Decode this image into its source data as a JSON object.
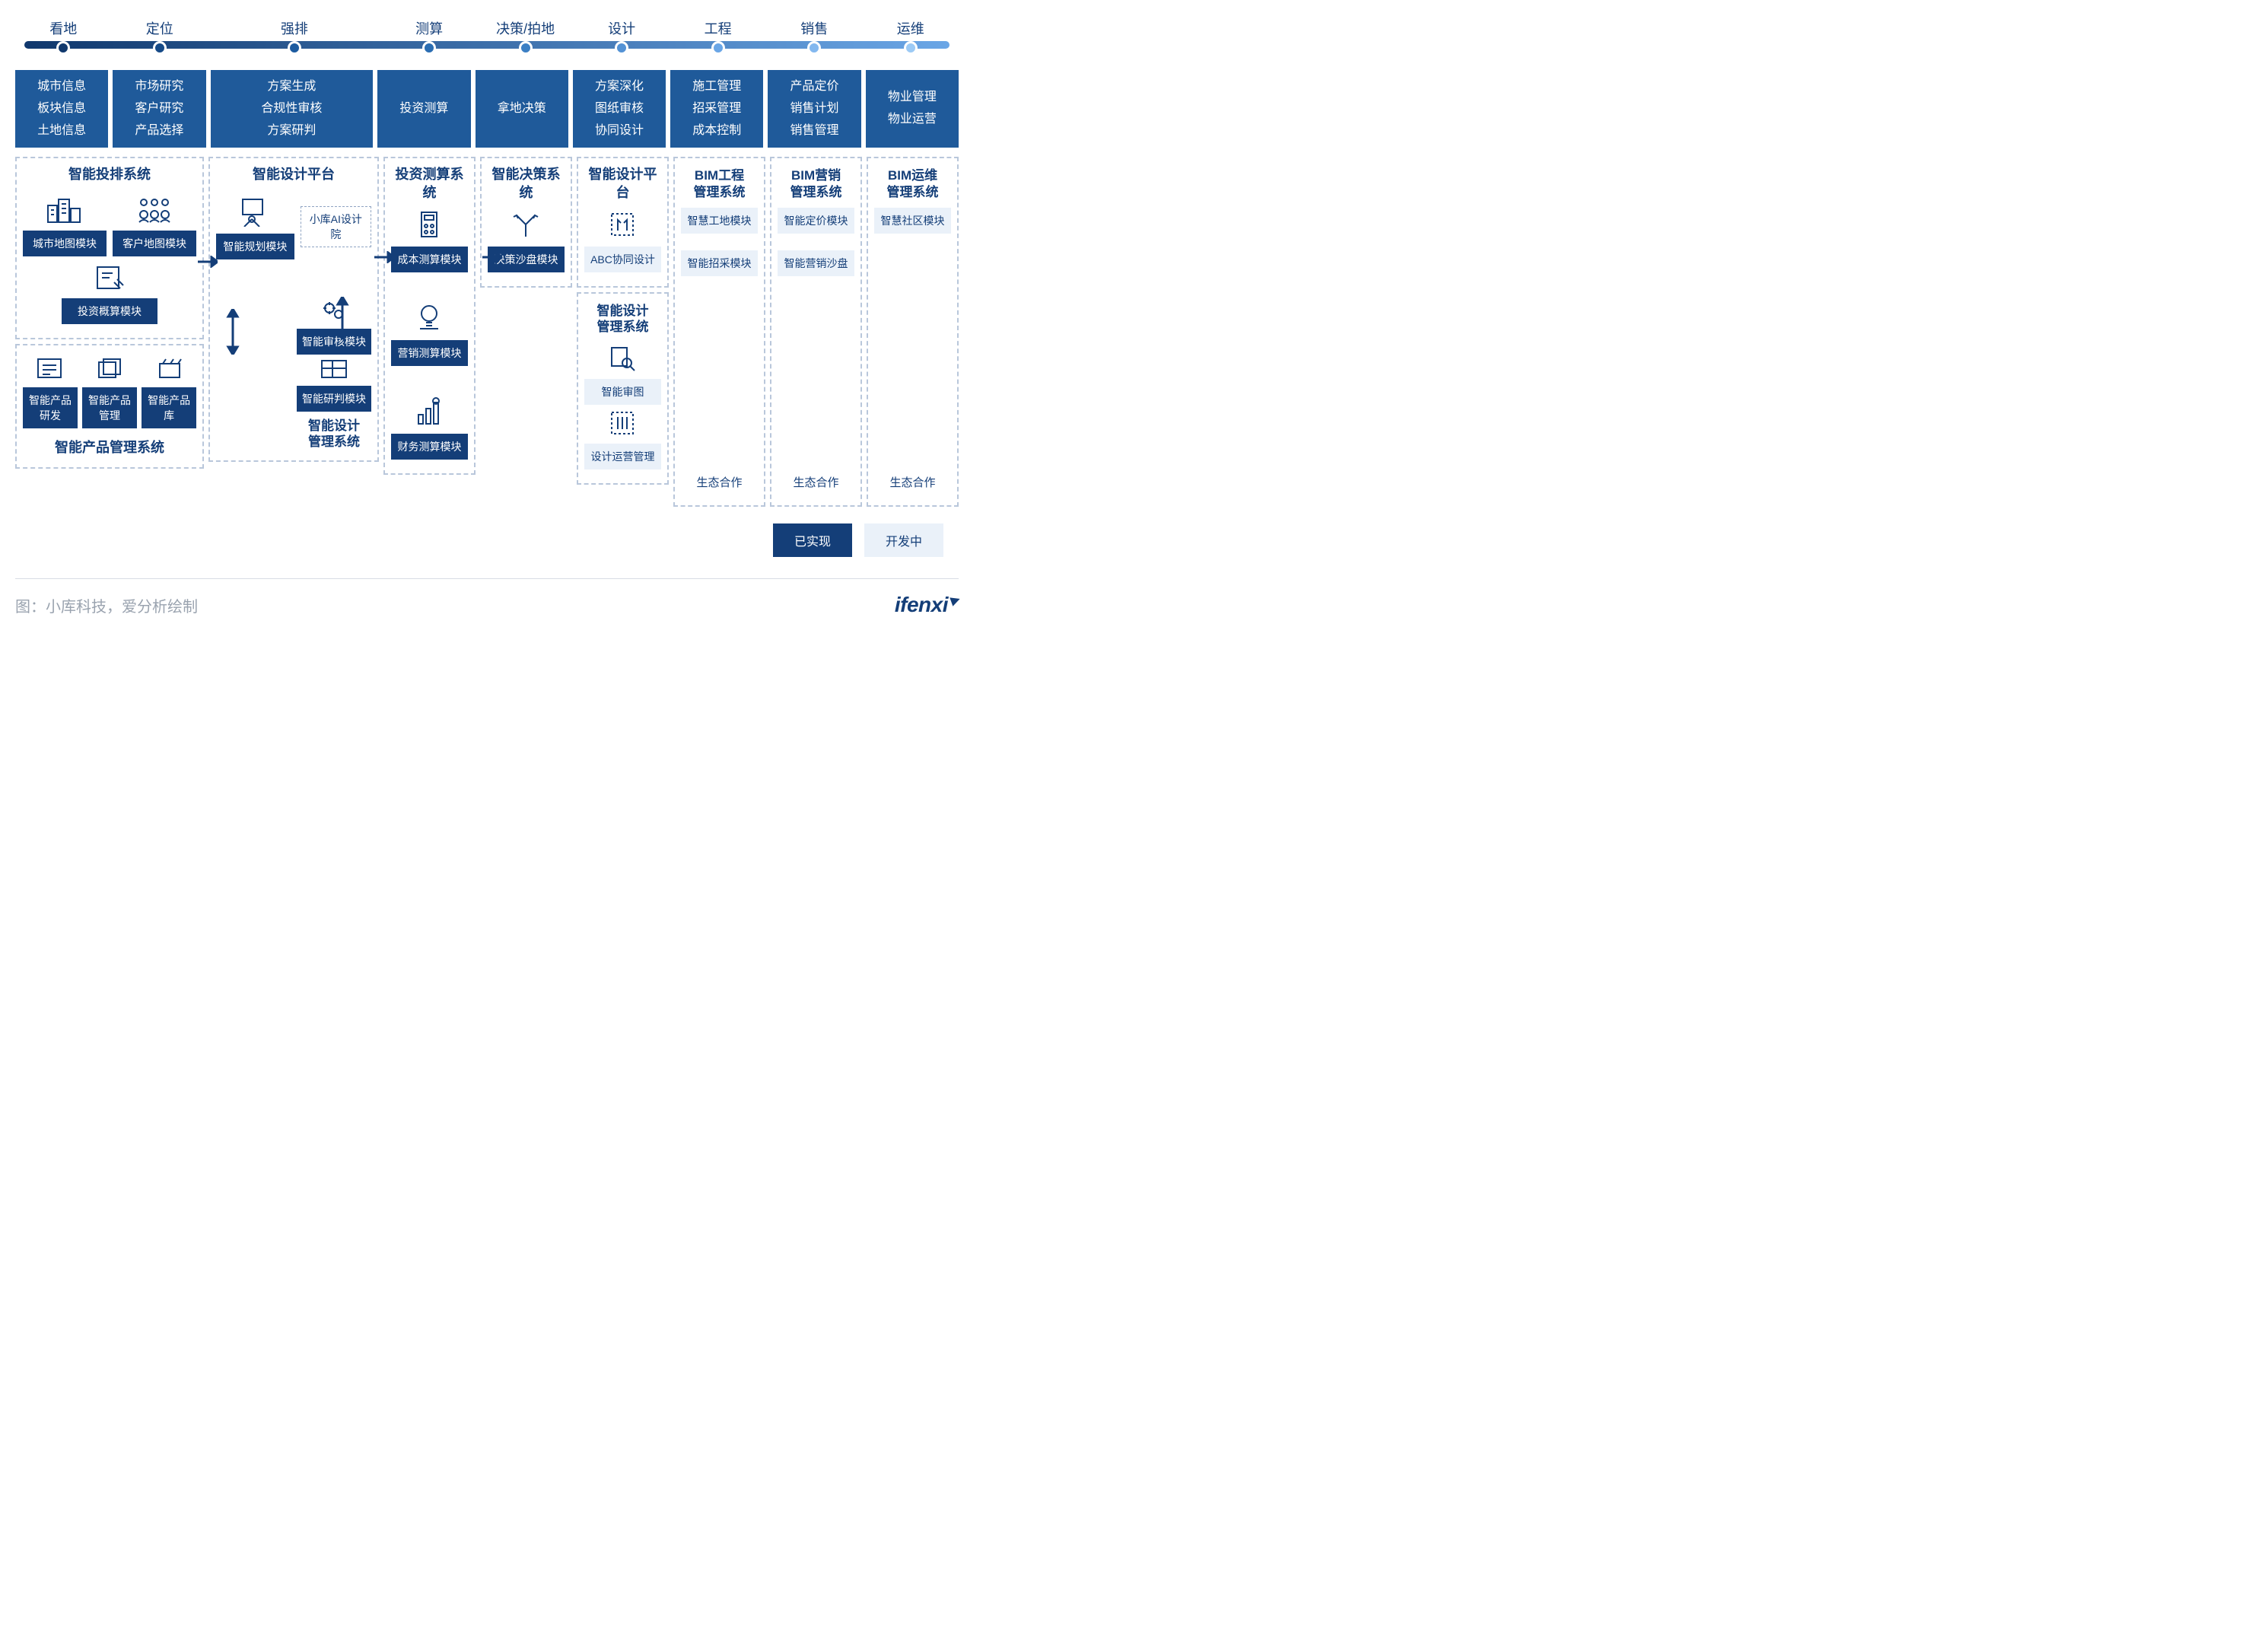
{
  "colors": {
    "dark": "#143e78",
    "mid": "#1f5a9a",
    "light": "#eaf1f9",
    "border": "#b9c7db",
    "text_muted": "#9aa3af",
    "gradient_start": "#10386d",
    "gradient_end": "#6aa6e6"
  },
  "timeline": {
    "phases": [
      "看地",
      "定位",
      "强排",
      "测算",
      "决策/拍地",
      "设计",
      "工程",
      "销售",
      "运维"
    ],
    "dot_colors": [
      "#10386d",
      "#164a87",
      "#1c5ba0",
      "#2a6db2",
      "#3b7fc4",
      "#5392d5",
      "#6aa6e6",
      "#83b8ef",
      "#9ccaf5"
    ],
    "label_fontsize": 18
  },
  "stages": [
    {
      "lines": [
        "城市信息",
        "板块信息",
        "土地信息"
      ],
      "flex": 1
    },
    {
      "lines": [
        "市场研究",
        "客户研究",
        "产品选择"
      ],
      "flex": 1
    },
    {
      "lines": [
        "方案生成",
        "合规性审核",
        "方案研判"
      ],
      "flex": 1.8
    },
    {
      "lines": [
        "投资测算"
      ],
      "flex": 1
    },
    {
      "lines": [
        "拿地决策"
      ],
      "flex": 1
    },
    {
      "lines": [
        "方案深化",
        "图纸审核",
        "协同设计"
      ],
      "flex": 1
    },
    {
      "lines": [
        "施工管理",
        "招采管理",
        "成本控制"
      ],
      "flex": 1
    },
    {
      "lines": [
        "产品定价",
        "销售计划",
        "销售管理"
      ],
      "flex": 1
    },
    {
      "lines": [
        "物业管理",
        "物业运营"
      ],
      "flex": 1
    }
  ],
  "col1": {
    "top_title": "智能投排系统",
    "m1": "城市地图模块",
    "m2": "客户地图模块",
    "m3": "投资概算模块",
    "bot_title": "智能产品管理系统",
    "b1": "智能产品研发",
    "b2": "智能产品管理",
    "b3": "智能产品库"
  },
  "col2": {
    "top_title": "智能设计平台",
    "m1": "智能规划模块",
    "m_dash": "小库AI设计院",
    "m2": "智能审核模块",
    "m3": "智能研判模块",
    "sub_title": "智能设计\n管理系统"
  },
  "col3": {
    "title": "投资测算系统",
    "m1": "成本测算模块",
    "m2": "营销测算模块",
    "m3": "财务测算模块"
  },
  "col4": {
    "title": "智能决策系统",
    "m1": "决策沙盘模块"
  },
  "col5": {
    "title": "智能设计平台",
    "m1": "ABC协同设计",
    "sub_title": "智能设计\n管理系统",
    "m2": "智能审图",
    "m3": "设计运营管理"
  },
  "col6": {
    "title": "BIM工程\n管理系统",
    "m1": "智慧工地模块",
    "m2": "智能招采模块",
    "eco": "生态合作"
  },
  "col7": {
    "title": "BIM营销\n管理系统",
    "m1": "智能定价模块",
    "m2": "智能营销沙盘",
    "eco": "生态合作"
  },
  "col8": {
    "title": "BIM运维\n管理系统",
    "m1": "智慧社区模块",
    "eco": "生态合作"
  },
  "legend": {
    "done": "已实现",
    "wip": "开发中"
  },
  "footer": {
    "source": "图：小库科技，爱分析绘制",
    "brand": "ifenxi"
  },
  "icons": {
    "city": "city-icon",
    "people": "people-icon",
    "doc": "doc-icon",
    "list": "list-icon",
    "stack": "stack-icon",
    "box": "box-icon",
    "compass": "compass-icon",
    "gears": "gears-icon",
    "grid": "grid-icon",
    "calc": "calc-icon",
    "bulb": "bulb-icon",
    "chart": "chart-icon",
    "fork": "fork-icon",
    "pencils": "pencils-icon",
    "magnify": "magnify-icon",
    "tools": "tools-icon"
  },
  "layout": {
    "col_widths": {
      "c1": 2.05,
      "c2": 1.85,
      "c3": 1,
      "c4": 1,
      "c5": 1,
      "c6": 1,
      "c7": 1,
      "c8": 1
    },
    "font_title": 18,
    "font_module": 14
  }
}
